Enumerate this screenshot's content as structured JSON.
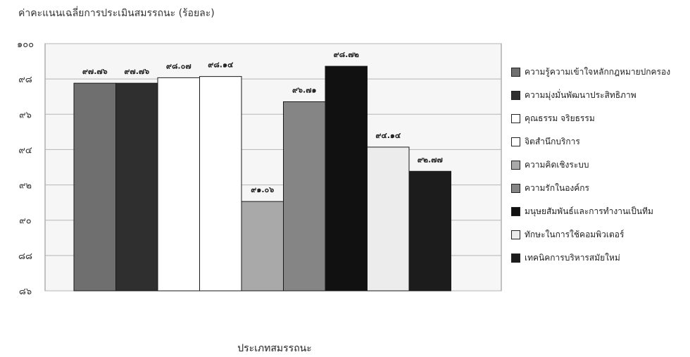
{
  "chart_data": {
    "type": "bar",
    "title": "ค่าคะแนนเฉลี่ยการประเมินสมรรถนะ (ร้อยละ)",
    "xlabel": "ประเภทสมรรถนะ",
    "ylabel": "",
    "ylim": [
      86,
      100
    ],
    "yticks": [
      86,
      88,
      90,
      92,
      94,
      96,
      98,
      100
    ],
    "ytick_labels": [
      "๘๖",
      "๘๘",
      "๙๐",
      "๙๒",
      "๙๔",
      "๙๖",
      "๙๘",
      "๑๐๐"
    ],
    "grid": true,
    "legend_position": "right",
    "series": [
      {
        "name": "ความรู้ความเข้าใจหลักกฎหมายปกครอง",
        "value": 97.76,
        "label": "๙๗.๗๖",
        "color": "#6f6f6f"
      },
      {
        "name": "ความมุ่งมั่นพัฒนาประสิทธิภาพ",
        "value": 97.76,
        "label": "๙๗.๗๖",
        "color": "#2f2f2f"
      },
      {
        "name": "คุณธรรม จริยธรรม",
        "value": 98.07,
        "label": "๙๘.๐๗",
        "color": "#ffffff"
      },
      {
        "name": "จิตสำนึกบริการ",
        "value": 98.14,
        "label": "๙๘.๑๔",
        "color": "#ffffff"
      },
      {
        "name": "ความคิดเชิงระบบ",
        "value": 91.06,
        "label": "๙๑.๐๖",
        "color": "#a9a9a9"
      },
      {
        "name": "ความรักในองค์กร",
        "value": 96.71,
        "label": "๙๖.๗๑",
        "color": "#858585"
      },
      {
        "name": "มนุษยสัมพันธ์และการทำงานเป็นทีม",
        "value": 98.72,
        "label": "๙๘.๗๒",
        "color": "#111111"
      },
      {
        "name": "ทักษะในการใช้คอมพิวเตอร์",
        "value": 94.14,
        "label": "๙๔.๑๔",
        "color": "#ececec"
      },
      {
        "name": "เทคนิคการบริหารสมัยใหม่",
        "value": 92.77,
        "label": "๙๒.๗๗",
        "color": "#1c1c1c"
      }
    ]
  }
}
